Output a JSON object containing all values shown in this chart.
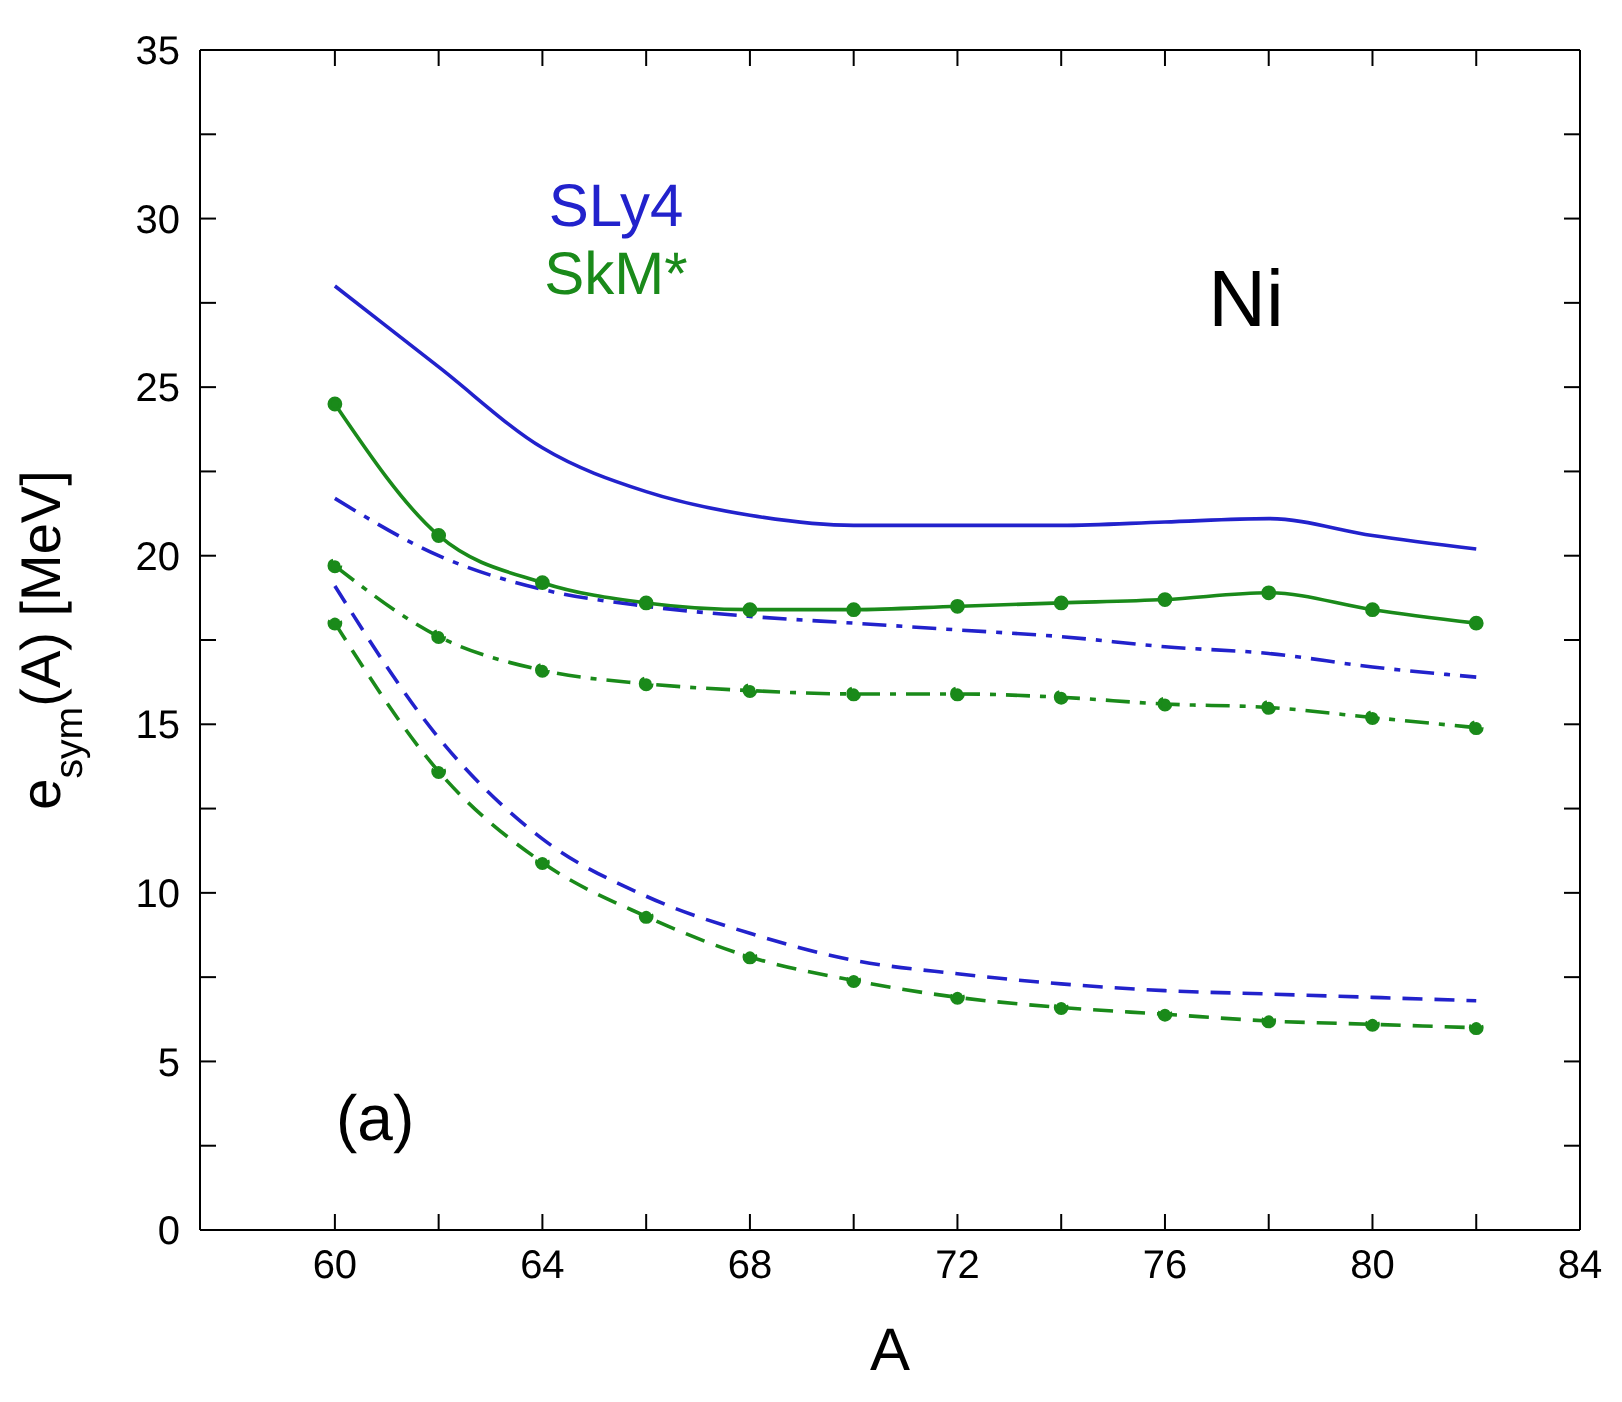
{
  "chart_data": {
    "type": "line",
    "xlabel": "A",
    "ylabel": "e$_{sym}$(A) [MeV]",
    "x": [
      60,
      62,
      64,
      66,
      68,
      70,
      72,
      74,
      76,
      78,
      80,
      82
    ],
    "series": [
      {
        "name": "SLy4",
        "color": "#2222cc",
        "line_style": "solid",
        "marker": "none",
        "values": [
          28.0,
          25.6,
          23.2,
          21.9,
          21.2,
          20.9,
          20.9,
          20.9,
          21.0,
          21.1,
          20.6,
          20.2
        ]
      },
      {
        "name": "SkM*",
        "color": "#1a8a1a",
        "line_style": "solid",
        "marker": "circle",
        "values": [
          24.5,
          20.6,
          19.2,
          18.6,
          18.4,
          18.4,
          18.5,
          18.6,
          18.7,
          18.9,
          18.4,
          18.0
        ]
      },
      {
        "color": "#2222cc",
        "line_style": "dashdot",
        "marker": "none",
        "values": [
          21.7,
          20.0,
          19.0,
          18.5,
          18.2,
          18.0,
          17.8,
          17.6,
          17.3,
          17.1,
          16.7,
          16.4
        ]
      },
      {
        "color": "#1a8a1a",
        "line_style": "dashdot",
        "marker": "circle",
        "values": [
          19.7,
          17.6,
          16.6,
          16.2,
          16.0,
          15.9,
          15.9,
          15.8,
          15.6,
          15.5,
          15.2,
          14.9
        ]
      },
      {
        "color": "#2222cc",
        "line_style": "dashed",
        "marker": "none",
        "values": [
          19.1,
          14.6,
          11.6,
          9.9,
          8.8,
          8.0,
          7.6,
          7.3,
          7.1,
          7.0,
          6.9,
          6.8
        ]
      },
      {
        "color": "#1a8a1a",
        "line_style": "dashed",
        "marker": "circle",
        "values": [
          18.0,
          13.6,
          10.9,
          9.3,
          8.1,
          7.4,
          6.9,
          6.6,
          6.4,
          6.2,
          6.1,
          6.0
        ]
      }
    ],
    "xlim": [
      57.4,
      84
    ],
    "xticks": [
      60,
      {
        "value": 62,
        "label": null
      },
      64,
      {
        "value": 66,
        "label": null
      },
      68,
      {
        "value": 70,
        "label": null
      },
      72,
      {
        "value": 74,
        "label": null
      },
      76,
      {
        "value": 78,
        "label": null
      },
      80,
      {
        "value": 82,
        "label": null
      },
      84
    ],
    "ylim": [
      0,
      35
    ],
    "yticks": [
      0,
      {
        "value": 2.5,
        "label": null
      },
      5,
      {
        "value": 7.5,
        "label": null
      },
      10,
      {
        "value": 12.5,
        "label": null
      },
      15,
      {
        "value": 17.5,
        "label": null
      },
      20,
      {
        "value": 22.5,
        "label": null
      },
      25,
      {
        "value": 27.5,
        "label": null
      },
      30,
      {
        "value": 32.5,
        "label": null
      },
      35
    ],
    "legend": "top left",
    "annotations": [
      "Ni",
      "(a)"
    ]
  }
}
